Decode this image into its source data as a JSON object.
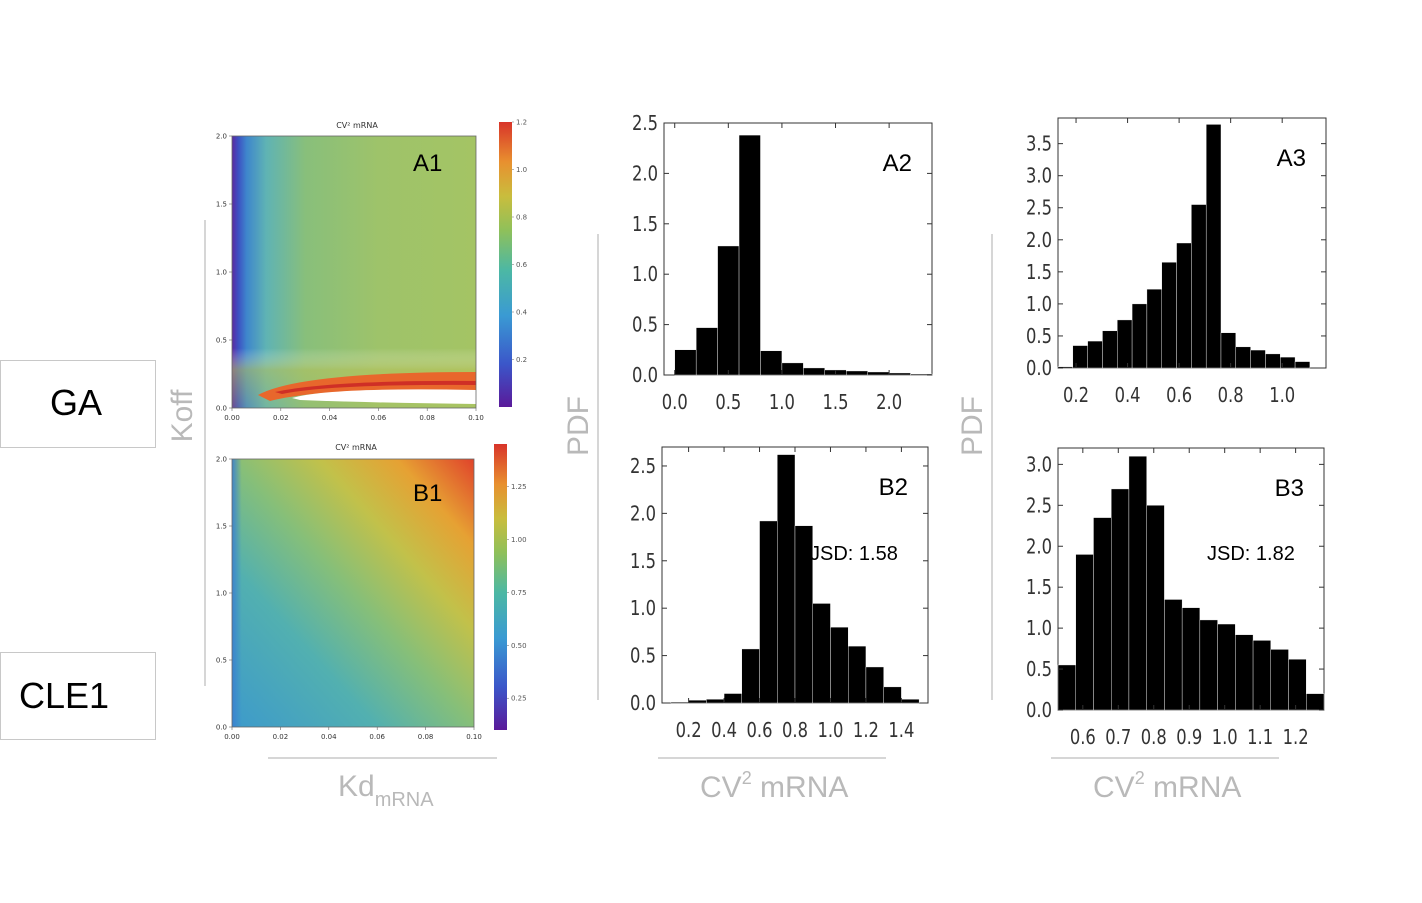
{
  "row_labels": {
    "top": "GA",
    "bottom": "CLE1"
  },
  "axis_labels": {
    "koff": "Koff",
    "kd": "Kd",
    "kd_sub": "mRNA",
    "pdf_left": "PDF",
    "pdf_right": "PDF",
    "cv_main": "CV",
    "cv_sup": "2",
    "cv_rest": " mRNA"
  },
  "colors": {
    "bars": "#000000",
    "muted_label": "#b9b9b9",
    "guide_line": "#c8c8c8"
  },
  "chart_data": [
    {
      "id": "A1",
      "type": "heatmap",
      "label": "A1",
      "title": "CV² mRNA",
      "xlim": [
        0,
        0.1
      ],
      "ylim": [
        0,
        2.0
      ],
      "xticks": [
        "0.00",
        "0.02",
        "0.04",
        "0.06",
        "0.08",
        "0.10"
      ],
      "yticks": [
        "0.0",
        "0.5",
        "1.0",
        "1.5",
        "2.0"
      ],
      "colorbar_range": [
        0,
        1.2
      ],
      "colorbar_ticks": [
        "0.2",
        "0.4",
        "0.6",
        "0.8",
        "1.0",
        "1.2"
      ],
      "colormap": "rainbow"
    },
    {
      "id": "B1",
      "type": "heatmap",
      "label": "B1",
      "title": "CV² mRNA",
      "xlim": [
        0,
        0.1
      ],
      "ylim": [
        0,
        2.0
      ],
      "xticks": [
        "0.00",
        "0.02",
        "0.04",
        "0.06",
        "0.08",
        "0.10"
      ],
      "yticks": [
        "0.0",
        "0.5",
        "1.0",
        "1.5",
        "2.0"
      ],
      "colorbar_range": [
        0.1,
        1.45
      ],
      "colorbar_ticks": [
        "0.25",
        "0.50",
        "0.75",
        "1.00",
        "1.25"
      ],
      "colormap": "rainbow"
    },
    {
      "id": "A2",
      "type": "bar",
      "label": "A2",
      "xlim": [
        -0.1,
        2.4
      ],
      "ylim": [
        0,
        2.5
      ],
      "xticks": [
        0.0,
        0.5,
        1.0,
        1.5,
        2.0
      ],
      "xtick_labels": [
        "0.0",
        "0.5",
        "1.0",
        "1.5",
        "2.0"
      ],
      "yticks": [
        0.0,
        0.5,
        1.0,
        1.5,
        2.0,
        2.5
      ],
      "ytick_labels": [
        "0.0",
        "0.5",
        "1.0",
        "1.5",
        "2.0",
        "2.5"
      ],
      "bin_start": -0.0,
      "bin_width": 0.2,
      "values": [
        0.25,
        0.47,
        1.28,
        2.38,
        0.24,
        0.12,
        0.07,
        0.05,
        0.04,
        0.03,
        0.02,
        0.01
      ]
    },
    {
      "id": "A3",
      "type": "bar",
      "label": "A3",
      "xlim": [
        0.13,
        1.17
      ],
      "ylim": [
        0,
        3.9
      ],
      "xticks": [
        0.2,
        0.4,
        0.6,
        0.8,
        1.0
      ],
      "xtick_labels": [
        "0.2",
        "0.4",
        "0.6",
        "0.8",
        "1.0"
      ],
      "yticks": [
        0.0,
        0.5,
        1.0,
        1.5,
        2.0,
        2.5,
        3.0,
        3.5
      ],
      "ytick_labels": [
        "0.0",
        "0.5",
        "1.0",
        "1.5",
        "2.0",
        "2.5",
        "3.0",
        "3.5"
      ],
      "bin_start": 0.13,
      "bin_width": 0.0575,
      "values": [
        0.02,
        0.35,
        0.42,
        0.58,
        0.75,
        1.0,
        1.23,
        1.65,
        1.95,
        2.55,
        3.8,
        0.55,
        0.33,
        0.28,
        0.22,
        0.17,
        0.1
      ]
    },
    {
      "id": "B2",
      "type": "bar",
      "label": "B2",
      "annotation": "JSD: 1.58",
      "xlim": [
        0.05,
        1.55
      ],
      "ylim": [
        0,
        2.7
      ],
      "xticks": [
        0.2,
        0.4,
        0.6,
        0.8,
        1.0,
        1.2,
        1.4
      ],
      "xtick_labels": [
        "0.2",
        "0.4",
        "0.6",
        "0.8",
        "1.0",
        "1.2",
        "1.4"
      ],
      "yticks": [
        0.0,
        0.5,
        1.0,
        1.5,
        2.0,
        2.5
      ],
      "ytick_labels": [
        "0.0",
        "0.5",
        "1.0",
        "1.5",
        "2.0",
        "2.5"
      ],
      "bin_start": 0.1,
      "bin_width": 0.1,
      "values": [
        0.01,
        0.03,
        0.04,
        0.1,
        0.57,
        1.92,
        2.62,
        1.87,
        1.05,
        0.8,
        0.6,
        0.38,
        0.17,
        0.04
      ]
    },
    {
      "id": "B3",
      "type": "bar",
      "label": "B3",
      "annotation": "JSD: 1.82",
      "xlim": [
        0.53,
        1.28
      ],
      "ylim": [
        0,
        3.2
      ],
      "xticks": [
        0.6,
        0.7,
        0.8,
        0.9,
        1.0,
        1.1,
        1.2
      ],
      "xtick_labels": [
        "0.6",
        "0.7",
        "0.8",
        "0.9",
        "1.0",
        "1.1",
        "1.2"
      ],
      "yticks": [
        0.0,
        0.5,
        1.0,
        1.5,
        2.0,
        2.5,
        3.0
      ],
      "ytick_labels": [
        "0.0",
        "0.5",
        "1.0",
        "1.5",
        "2.0",
        "2.5",
        "3.0"
      ],
      "bin_start": 0.53,
      "bin_width": 0.05,
      "values": [
        0.55,
        1.9,
        2.35,
        2.7,
        3.1,
        2.5,
        1.35,
        1.25,
        1.1,
        1.05,
        0.92,
        0.85,
        0.74,
        0.62,
        0.2
      ]
    }
  ]
}
